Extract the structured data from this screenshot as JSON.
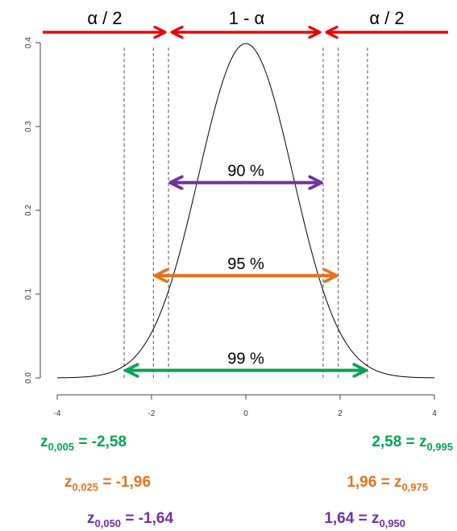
{
  "chart_data": {
    "type": "line",
    "title": "",
    "xlabel": "",
    "ylabel": "",
    "xlim": [
      -4,
      4
    ],
    "ylim": [
      0,
      0.4
    ],
    "xticks": [
      "-4",
      "-2",
      "0",
      "2",
      "4"
    ],
    "yticks": [
      "0.0",
      "0.1",
      "0.2",
      "0.3",
      "0.4"
    ],
    "curve": "standard normal density",
    "critical_lines": [
      -2.58,
      -1.96,
      -1.64,
      1.64,
      1.96,
      2.58
    ],
    "top_labels": {
      "left": "α / 2",
      "center": "1 - α",
      "right": "α / 2",
      "color": "#ee0000"
    },
    "intervals": [
      {
        "label": "90 %",
        "lo": -1.64,
        "hi": 1.64,
        "y": 0.233,
        "color": "#7030a0"
      },
      {
        "label": "95 %",
        "lo": -1.96,
        "hi": 1.96,
        "y": 0.122,
        "color": "#e8711c"
      },
      {
        "label": "99 %",
        "lo": -2.58,
        "hi": 2.58,
        "y": 0.009,
        "color": "#00a651"
      }
    ],
    "quantile_labels": [
      {
        "color": "#00a651",
        "left": {
          "sub": "0,005",
          "rest": " = -2,58"
        },
        "right": {
          "value": "2,58 = ",
          "sub": "0,995"
        }
      },
      {
        "color": "#e8711c",
        "left": {
          "sub": "0,025",
          "rest": " = -1,96"
        },
        "right": {
          "value": "1,96 = ",
          "sub": "0,975"
        }
      },
      {
        "color": "#7030a0",
        "left": {
          "sub": "0,050",
          "rest": " = -1,64"
        },
        "right": {
          "value": "1,64 = ",
          "sub": "0,950"
        }
      }
    ],
    "z_symbol": "z"
  }
}
